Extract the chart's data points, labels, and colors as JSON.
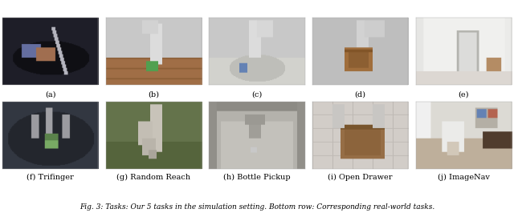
{
  "top_labels": [
    "(a)",
    "(b)",
    "(c)",
    "(d)",
    "(e)"
  ],
  "bottom_labels": [
    "(f) Trifinger",
    "(g) Random Reach",
    "(h) Bottle Pickup",
    "(i) Open Drawer",
    "(j) ImageNav"
  ],
  "fig_width": 6.4,
  "fig_height": 2.71,
  "dpi": 100,
  "label_fontsize": 7.0,
  "background_color": "#ffffff",
  "caption_text": "Fig. 3: Tasks: Our 5 tasks in the simulation setting. Bottom row: Corresponding real-world tasks.",
  "caption_fontsize": 6.5
}
